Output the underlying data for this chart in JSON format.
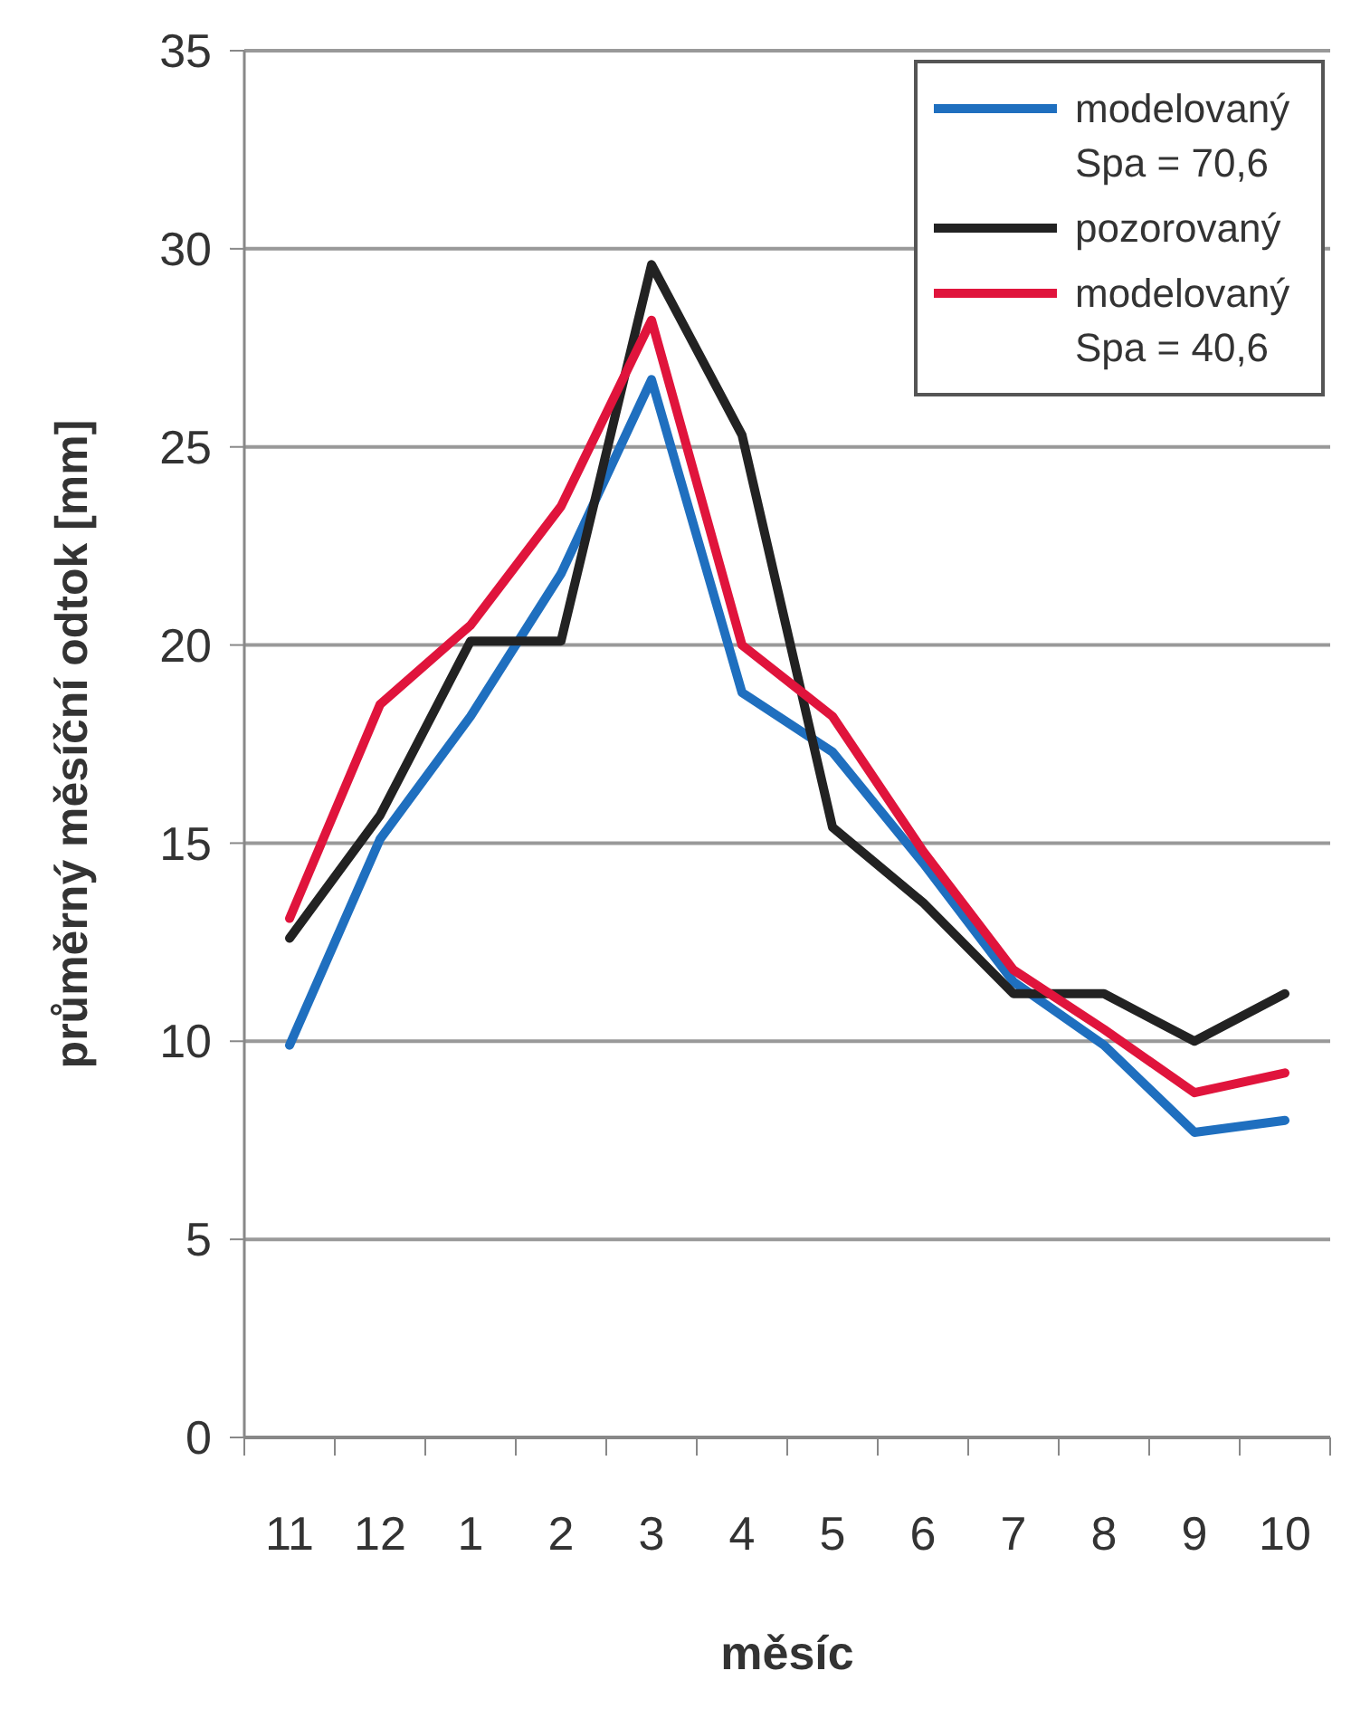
{
  "chart_data": {
    "type": "line",
    "xlabel": "měsíc",
    "ylabel": "průměrný měsíční odtok [mm]",
    "categories": [
      "11",
      "12",
      "1",
      "2",
      "3",
      "4",
      "5",
      "6",
      "7",
      "8",
      "9",
      "10"
    ],
    "series": [
      {
        "name": "modelovaný\nSpa = 70,6",
        "color": "#1f6fbf",
        "values": [
          9.9,
          15.1,
          18.2,
          21.8,
          26.7,
          18.8,
          17.3,
          14.5,
          11.5,
          9.9,
          7.7,
          8.0
        ]
      },
      {
        "name": "pozorovaný",
        "color": "#222222",
        "values": [
          12.6,
          15.7,
          20.1,
          20.1,
          29.6,
          25.3,
          15.4,
          13.5,
          11.2,
          11.2,
          10.0,
          11.2
        ]
      },
      {
        "name": "modelovaný\nSpa = 40,6",
        "color": "#e0143c",
        "values": [
          13.1,
          18.5,
          20.5,
          23.5,
          28.2,
          20.0,
          18.2,
          14.8,
          11.8,
          10.3,
          8.7,
          9.2
        ]
      }
    ],
    "ylim": [
      0,
      35
    ],
    "yticks": [
      0,
      5,
      10,
      15,
      20,
      25,
      30,
      35
    ],
    "grid": "y",
    "legend": "top right",
    "marker": "none",
    "line_style": "solid"
  }
}
